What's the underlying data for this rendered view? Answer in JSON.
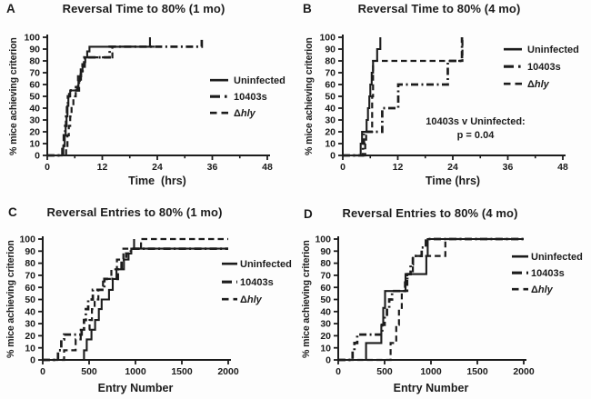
{
  "figure": {
    "background": "#fdfdfd",
    "ink_color": "#1c1c1c",
    "description": "Four-panel step-plot figure of percent mice achieving criterion"
  },
  "chart_data": [
    {
      "type": "step",
      "letter": "A",
      "title": "Reversal Time to 80% (1 mo)",
      "xlabel": "Time  (hrs)",
      "ylabel": "% mice achieving criterion",
      "xlim": [
        0,
        48
      ],
      "ylim": [
        0,
        100
      ],
      "xticks": [
        0,
        12,
        24,
        36,
        48
      ],
      "xticks_minor": [
        6,
        18,
        30,
        42
      ],
      "yticks": [
        0,
        10,
        20,
        30,
        40,
        50,
        60,
        70,
        80,
        90,
        100
      ],
      "legend_position": "right",
      "grid": false,
      "series": [
        {
          "key": "uninfected",
          "label": "Uninfected",
          "style": "solid",
          "points": [
            [
              0,
              0
            ],
            [
              3.2,
              0
            ],
            [
              3.5,
              8
            ],
            [
              3.8,
              17
            ],
            [
              4.0,
              25
            ],
            [
              4.2,
              33
            ],
            [
              4.4,
              42
            ],
            [
              4.6,
              50
            ],
            [
              5.0,
              55
            ],
            [
              6.2,
              55
            ],
            [
              6.5,
              58
            ],
            [
              6.8,
              63
            ],
            [
              7.1,
              67
            ],
            [
              7.4,
              71
            ],
            [
              7.7,
              75
            ],
            [
              8.0,
              79
            ],
            [
              8.3,
              83
            ],
            [
              8.7,
              88
            ],
            [
              9.2,
              92
            ],
            [
              22.8,
              92
            ]
          ],
          "censor_tick": [
            22.4,
            92,
            100
          ]
        },
        {
          "key": "10403s",
          "label": "10403s",
          "style": "dashdot",
          "points": [
            [
              0,
              0
            ],
            [
              3.0,
              0
            ],
            [
              3.3,
              8
            ],
            [
              3.6,
              17
            ],
            [
              3.9,
              25
            ],
            [
              4.1,
              33
            ],
            [
              4.3,
              42
            ],
            [
              4.5,
              50
            ],
            [
              4.8,
              55
            ],
            [
              6.6,
              55
            ],
            [
              6.9,
              63
            ],
            [
              7.3,
              70
            ],
            [
              7.7,
              77
            ],
            [
              8.1,
              83
            ],
            [
              13.2,
              83
            ],
            [
              13.6,
              92
            ],
            [
              33.4,
              92
            ],
            [
              33.7,
              100
            ]
          ]
        },
        {
          "key": "delta-hly",
          "label": "Δhly",
          "label_prefix": "Δ",
          "label_italic": "hly",
          "style": "dashed",
          "points": [
            [
              0,
              0
            ],
            [
              3.9,
              0
            ],
            [
              4.1,
              8
            ],
            [
              4.4,
              17
            ],
            [
              4.7,
              25
            ],
            [
              5.0,
              33
            ],
            [
              5.3,
              42
            ],
            [
              5.7,
              50
            ],
            [
              6.2,
              58
            ],
            [
              6.7,
              67
            ],
            [
              7.3,
              75
            ],
            [
              8.2,
              83
            ],
            [
              13.8,
              83
            ],
            [
              14.2,
              92
            ],
            [
              23.5,
              92
            ]
          ]
        }
      ],
      "annotation": null
    },
    {
      "type": "step",
      "letter": "B",
      "title": "Reversal Time to 80% (4 mo)",
      "xlabel": "Time (hrs)",
      "ylabel": "% mice achieving criterion",
      "xlim": [
        0,
        48
      ],
      "ylim": [
        0,
        100
      ],
      "xticks": [
        0,
        12,
        24,
        36,
        48
      ],
      "xticks_minor": [
        6,
        18,
        30,
        42
      ],
      "yticks": [
        0,
        10,
        20,
        30,
        40,
        50,
        60,
        70,
        80,
        90,
        100
      ],
      "legend_position": "right",
      "grid": false,
      "series": [
        {
          "key": "uninfected",
          "label": "Uninfected",
          "style": "solid",
          "points": [
            [
              0,
              0
            ],
            [
              3.7,
              0
            ],
            [
              3.9,
              10
            ],
            [
              4.2,
              20
            ],
            [
              4.9,
              20
            ],
            [
              5.2,
              30
            ],
            [
              5.5,
              40
            ],
            [
              5.8,
              50
            ],
            [
              6.0,
              60
            ],
            [
              6.3,
              70
            ],
            [
              6.6,
              80
            ],
            [
              7.3,
              80
            ],
            [
              7.5,
              90
            ],
            [
              8.0,
              90
            ],
            [
              8.2,
              100
            ]
          ]
        },
        {
          "key": "10403s",
          "label": "10403s",
          "style": "dashdot",
          "points": [
            [
              0,
              0
            ],
            [
              4.2,
              0
            ],
            [
              4.4,
              10
            ],
            [
              4.6,
              20
            ],
            [
              8.3,
              20
            ],
            [
              8.6,
              40
            ],
            [
              11.8,
              40
            ],
            [
              12.1,
              60
            ],
            [
              22.5,
              60
            ],
            [
              22.9,
              80
            ],
            [
              25.7,
              80
            ],
            [
              26.0,
              100
            ]
          ]
        },
        {
          "key": "delta-hly",
          "label": "Δhly",
          "label_prefix": "Δ",
          "label_italic": "hly",
          "style": "dashed",
          "points": [
            [
              0,
              0
            ],
            [
              4.7,
              0
            ],
            [
              4.9,
              10
            ],
            [
              5.1,
              20
            ],
            [
              6.2,
              20
            ],
            [
              6.4,
              50
            ],
            [
              6.6,
              80
            ],
            [
              25.8,
              80
            ],
            [
              26.1,
              100
            ]
          ]
        }
      ],
      "annotation": {
        "lines": [
          "10403s v Uninfected:",
          "p = 0.04"
        ]
      }
    },
    {
      "type": "step",
      "letter": "C",
      "title": "Reversal Entries to 80% (1 mo)",
      "xlabel": "Entry Number",
      "ylabel": "% mice achieving criterion",
      "xlim": [
        0,
        2000
      ],
      "ylim": [
        0,
        100
      ],
      "xticks": [
        0,
        500,
        1000,
        1500,
        2000
      ],
      "xticks_minor": [],
      "yticks": [
        0,
        10,
        20,
        30,
        40,
        50,
        60,
        70,
        80,
        90,
        100
      ],
      "legend_position": "right",
      "grid": false,
      "series": [
        {
          "key": "uninfected",
          "label": "Uninfected",
          "style": "solid",
          "points": [
            [
              0,
              0
            ],
            [
              420,
              0
            ],
            [
              445,
              8
            ],
            [
              475,
              17
            ],
            [
              525,
              25
            ],
            [
              565,
              33
            ],
            [
              605,
              42
            ],
            [
              635,
              50
            ],
            [
              695,
              50
            ],
            [
              715,
              58
            ],
            [
              755,
              67
            ],
            [
              795,
              75
            ],
            [
              845,
              75
            ],
            [
              875,
              83
            ],
            [
              925,
              88
            ],
            [
              955,
              92
            ],
            [
              2000,
              92
            ]
          ],
          "censor_tick": [
            985,
            92,
            100
          ]
        },
        {
          "key": "10403s",
          "label": "10403s",
          "style": "dashdot",
          "points": [
            [
              0,
              0
            ],
            [
              150,
              0
            ],
            [
              165,
              8
            ],
            [
              200,
              17
            ],
            [
              230,
              21
            ],
            [
              390,
              21
            ],
            [
              420,
              25
            ],
            [
              445,
              33
            ],
            [
              465,
              42
            ],
            [
              490,
              50
            ],
            [
              540,
              58
            ],
            [
              640,
              58
            ],
            [
              665,
              67
            ],
            [
              780,
              67
            ],
            [
              810,
              75
            ],
            [
              850,
              83
            ],
            [
              900,
              88
            ],
            [
              950,
              92
            ],
            [
              2000,
              92
            ]
          ]
        },
        {
          "key": "delta-hly",
          "label": "Δhly",
          "label_prefix": "Δ",
          "label_italic": "hly",
          "style": "dashed",
          "points": [
            [
              0,
              0
            ],
            [
              200,
              0
            ],
            [
              230,
              8
            ],
            [
              330,
              8
            ],
            [
              355,
              17
            ],
            [
              410,
              25
            ],
            [
              480,
              25
            ],
            [
              505,
              33
            ],
            [
              530,
              42
            ],
            [
              560,
              50
            ],
            [
              600,
              58
            ],
            [
              650,
              67
            ],
            [
              710,
              67
            ],
            [
              740,
              75
            ],
            [
              800,
              83
            ],
            [
              870,
              92
            ],
            [
              1030,
              92
            ],
            [
              1060,
              100
            ],
            [
              2000,
              100
            ]
          ]
        }
      ],
      "annotation": null
    },
    {
      "type": "step",
      "letter": "D",
      "title": "Reversal Entries to 80% (4 mo)",
      "xlabel": "Entry Number",
      "ylabel": "% mice achieving criterion",
      "xlim": [
        0,
        2000
      ],
      "ylim": [
        0,
        100
      ],
      "xticks": [
        0,
        500,
        1000,
        1500,
        2000
      ],
      "xticks_minor": [],
      "yticks": [
        0,
        10,
        20,
        30,
        40,
        50,
        60,
        70,
        80,
        90,
        100
      ],
      "legend_position": "right",
      "grid": false,
      "series": [
        {
          "key": "uninfected",
          "label": "Uninfected",
          "style": "solid",
          "points": [
            [
              0,
              0
            ],
            [
              285,
              0
            ],
            [
              300,
              14
            ],
            [
              445,
              14
            ],
            [
              465,
              29
            ],
            [
              485,
              43
            ],
            [
              505,
              57
            ],
            [
              700,
              57
            ],
            [
              725,
              71
            ],
            [
              930,
              71
            ],
            [
              950,
              86
            ],
            [
              965,
              100
            ],
            [
              2000,
              100
            ]
          ]
        },
        {
          "key": "10403s",
          "label": "10403s",
          "style": "dashdot",
          "points": [
            [
              0,
              0
            ],
            [
              140,
              0
            ],
            [
              155,
              7
            ],
            [
              175,
              14
            ],
            [
              205,
              21
            ],
            [
              450,
              21
            ],
            [
              475,
              29
            ],
            [
              500,
              36
            ],
            [
              525,
              43
            ],
            [
              550,
              50
            ],
            [
              580,
              57
            ],
            [
              700,
              57
            ],
            [
              722,
              64
            ],
            [
              745,
              71
            ],
            [
              780,
              79
            ],
            [
              805,
              86
            ],
            [
              900,
              93
            ],
            [
              945,
              100
            ],
            [
              2000,
              100
            ]
          ]
        },
        {
          "key": "delta-hly",
          "label": "Δhly",
          "label_prefix": "Δ",
          "label_italic": "hly",
          "style": "dashed",
          "points": [
            [
              0,
              0
            ],
            [
              545,
              0
            ],
            [
              565,
              14
            ],
            [
              605,
              14
            ],
            [
              625,
              29
            ],
            [
              655,
              43
            ],
            [
              685,
              57
            ],
            [
              725,
              57
            ],
            [
              745,
              71
            ],
            [
              805,
              86
            ],
            [
              1130,
              86
            ],
            [
              1155,
              100
            ],
            [
              2000,
              100
            ]
          ]
        }
      ],
      "annotation": null
    }
  ]
}
